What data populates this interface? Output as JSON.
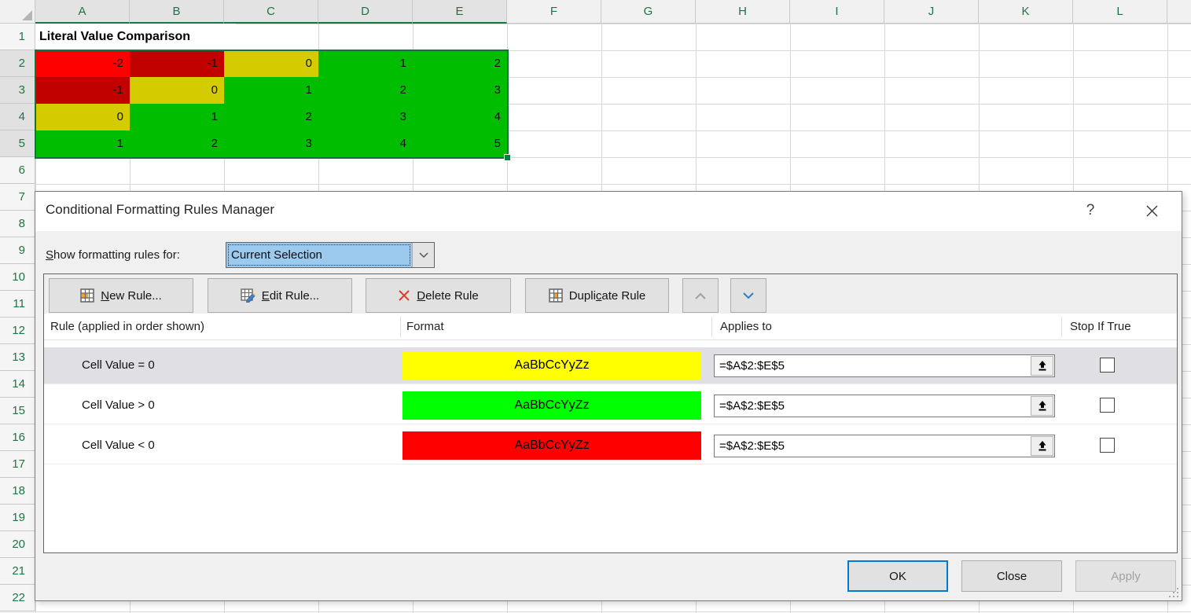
{
  "spreadsheet": {
    "columns": [
      "A",
      "B",
      "C",
      "D",
      "E",
      "F",
      "G",
      "H",
      "I",
      "J",
      "K",
      "L"
    ],
    "selected_columns": [
      "A",
      "B",
      "C",
      "D",
      "E"
    ],
    "row_numbers": [
      1,
      2,
      3,
      4,
      5,
      6,
      7,
      8,
      9,
      10,
      11,
      12,
      13,
      14,
      15,
      16,
      17,
      18,
      19,
      20,
      21,
      22
    ],
    "selected_rows": [
      2,
      3,
      4,
      5
    ],
    "title_cell": "Literal Value Comparison",
    "selected_range": "A2:E5",
    "cell_colors": {
      "red_active": "#FE0000",
      "red": "#C10000",
      "yellow": "#D4CC00",
      "green": "#00BD00"
    },
    "value_rows": [
      {
        "row": 2,
        "cells": [
          {
            "value": "-2",
            "style": "red_active"
          },
          {
            "value": "-1",
            "style": "red"
          },
          {
            "value": "0",
            "style": "yellow"
          },
          {
            "value": "1",
            "style": "green"
          },
          {
            "value": "2",
            "style": "green"
          }
        ]
      },
      {
        "row": 3,
        "cells": [
          {
            "value": "-1",
            "style": "red"
          },
          {
            "value": "0",
            "style": "yellow"
          },
          {
            "value": "1",
            "style": "green"
          },
          {
            "value": "2",
            "style": "green"
          },
          {
            "value": "3",
            "style": "green"
          }
        ]
      },
      {
        "row": 4,
        "cells": [
          {
            "value": "0",
            "style": "yellow"
          },
          {
            "value": "1",
            "style": "green"
          },
          {
            "value": "2",
            "style": "green"
          },
          {
            "value": "3",
            "style": "green"
          },
          {
            "value": "4",
            "style": "green"
          }
        ]
      },
      {
        "row": 5,
        "cells": [
          {
            "value": "1",
            "style": "green"
          },
          {
            "value": "2",
            "style": "green"
          },
          {
            "value": "3",
            "style": "green"
          },
          {
            "value": "4",
            "style": "green"
          },
          {
            "value": "5",
            "style": "green"
          }
        ]
      }
    ]
  },
  "dialog": {
    "title": "Conditional Formatting Rules Manager",
    "help_icon": "?",
    "show_rules": {
      "pre": "",
      "key": "S",
      "rest": "how formatting rules for:"
    },
    "selected_scope": "Current Selection",
    "toolbar": {
      "new_rule": {
        "pre": "",
        "key": "N",
        "rest": "ew Rule..."
      },
      "edit_rule": {
        "pre": "",
        "key": "E",
        "rest": "dit Rule..."
      },
      "delete_rule": {
        "pre": "",
        "key": "D",
        "rest": "elete Rule"
      },
      "duplicate_rule": {
        "pre": "Dupli",
        "key": "c",
        "rest": "ate Rule"
      }
    },
    "list": {
      "headers": {
        "rule": "Rule (applied in order shown)",
        "format": "Format",
        "applies": "Applies to",
        "stop": "Stop If True"
      },
      "rules": [
        {
          "rule": "Cell Value = 0",
          "format_text": "AaBbCcYyZz",
          "format_color": "#FFFF00",
          "applies_to": "=$A$2:$E$5",
          "stop_if_true": false,
          "selected": true
        },
        {
          "rule": "Cell Value > 0",
          "format_text": "AaBbCcYyZz",
          "format_color": "#00FF00",
          "applies_to": "=$A$2:$E$5",
          "stop_if_true": false,
          "selected": false
        },
        {
          "rule": "Cell Value < 0",
          "format_text": "AaBbCcYyZz",
          "format_color": "#FF0000",
          "applies_to": "=$A$2:$E$5",
          "stop_if_true": false,
          "selected": false
        }
      ]
    },
    "footer": {
      "ok": "OK",
      "close": "Close",
      "apply": "Apply"
    },
    "accent": {
      "focus_blue": "#0078D4",
      "selection_blue": "#9CC9EE",
      "excel_green": "#107C41"
    }
  }
}
